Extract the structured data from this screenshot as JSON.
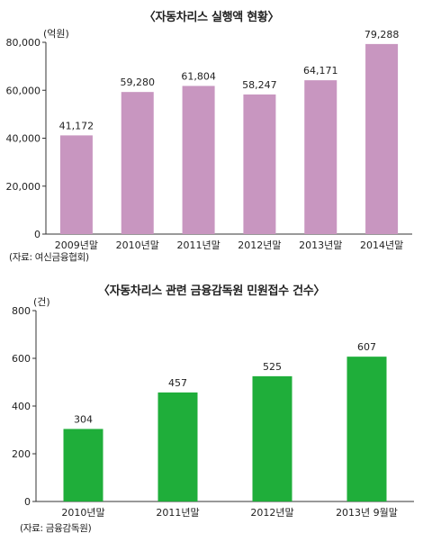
{
  "chart_data": [
    {
      "type": "bar",
      "title": "〈자동차리스 실행액 현황〉",
      "unit_label": "(억원)",
      "categories": [
        "2009년말",
        "2010년말",
        "2011년말",
        "2012년말",
        "2013년말",
        "2014년말"
      ],
      "values": [
        41172,
        59280,
        61804,
        58247,
        64171,
        79288
      ],
      "value_labels": [
        "41,172",
        "59,280",
        "61,804",
        "58,247",
        "64,171",
        "79,288"
      ],
      "ylim": [
        0,
        80000
      ],
      "yticks": [
        0,
        20000,
        40000,
        60000,
        80000
      ],
      "ytick_labels": [
        "0",
        "20,000",
        "40,000",
        "60,000",
        "80,000"
      ],
      "grid": false,
      "bar_color": "#c896c0",
      "source": "(자료: 여신금융협회)"
    },
    {
      "type": "bar",
      "title": "〈자동차리스 관련 금융감독원 민원접수 건수〉",
      "unit_label": "(건)",
      "categories": [
        "2010년말",
        "2011년말",
        "2012년말",
        "2013년 9월말"
      ],
      "values": [
        304,
        457,
        525,
        607
      ],
      "value_labels": [
        "304",
        "457",
        "525",
        "607"
      ],
      "ylim": [
        0,
        800
      ],
      "yticks": [
        0,
        200,
        400,
        600,
        800
      ],
      "ytick_labels": [
        "0",
        "200",
        "400",
        "600",
        "800"
      ],
      "grid": false,
      "bar_color": "#1fae3a",
      "source": "(자료: 금융감독원)"
    }
  ]
}
